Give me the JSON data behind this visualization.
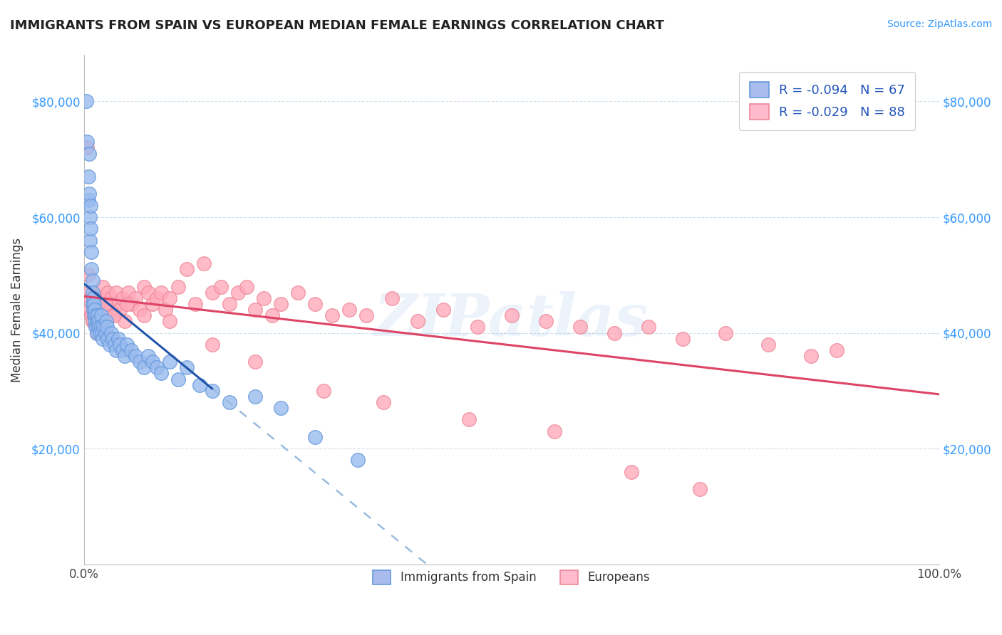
{
  "title": "IMMIGRANTS FROM SPAIN VS EUROPEAN MEDIAN FEMALE EARNINGS CORRELATION CHART",
  "source_text": "Source: ZipAtlas.com",
  "ylabel": "Median Female Earnings",
  "y_tick_values": [
    20000,
    40000,
    60000,
    80000
  ],
  "xlim": [
    0,
    1
  ],
  "ylim": [
    0,
    88000
  ],
  "legend_entry1": "R = -0.094   N = 67",
  "legend_entry2": "R = -0.029   N = 88",
  "legend_label1": "Immigrants from Spain",
  "legend_label2": "Europeans",
  "series1_color": "#6699dd",
  "series1_fill": "#99bbee",
  "series2_color": "#ee8899",
  "series2_fill": "#ffaabb",
  "trendline1_solid_color": "#2255aa",
  "trendline1_dash_color": "#99bbdd",
  "trendline2_color": "#dd4466",
  "watermark_text": "ZIPatlas",
  "title_color": "#222222",
  "title_fontsize": 13,
  "series1_x": [
    0.003,
    0.004,
    0.005,
    0.005,
    0.006,
    0.006,
    0.007,
    0.007,
    0.008,
    0.008,
    0.009,
    0.009,
    0.01,
    0.01,
    0.01,
    0.011,
    0.011,
    0.012,
    0.012,
    0.013,
    0.013,
    0.014,
    0.014,
    0.015,
    0.015,
    0.016,
    0.016,
    0.017,
    0.018,
    0.019,
    0.02,
    0.02,
    0.021,
    0.022,
    0.023,
    0.025,
    0.026,
    0.027,
    0.028,
    0.03,
    0.032,
    0.034,
    0.036,
    0.038,
    0.04,
    0.042,
    0.045,
    0.048,
    0.05,
    0.055,
    0.06,
    0.065,
    0.07,
    0.075,
    0.08,
    0.085,
    0.09,
    0.1,
    0.11,
    0.12,
    0.135,
    0.15,
    0.17,
    0.2,
    0.23,
    0.27,
    0.32
  ],
  "series1_y": [
    80000,
    73000,
    67000,
    63000,
    71000,
    64000,
    60000,
    56000,
    62000,
    58000,
    54000,
    51000,
    49000,
    47000,
    45000,
    46000,
    44000,
    45000,
    43000,
    44000,
    42000,
    43000,
    41000,
    42000,
    40000,
    41000,
    43000,
    42000,
    41000,
    40000,
    43000,
    41000,
    40000,
    39000,
    41000,
    40000,
    42000,
    41000,
    39000,
    38000,
    40000,
    39000,
    38000,
    37000,
    39000,
    38000,
    37000,
    36000,
    38000,
    37000,
    36000,
    35000,
    34000,
    36000,
    35000,
    34000,
    33000,
    35000,
    32000,
    34000,
    31000,
    30000,
    28000,
    29000,
    27000,
    22000,
    18000
  ],
  "series2_x": [
    0.004,
    0.005,
    0.006,
    0.007,
    0.008,
    0.009,
    0.01,
    0.01,
    0.011,
    0.012,
    0.013,
    0.014,
    0.015,
    0.016,
    0.017,
    0.018,
    0.019,
    0.02,
    0.022,
    0.024,
    0.026,
    0.028,
    0.03,
    0.032,
    0.035,
    0.038,
    0.04,
    0.042,
    0.045,
    0.048,
    0.052,
    0.056,
    0.06,
    0.065,
    0.07,
    0.075,
    0.08,
    0.085,
    0.09,
    0.095,
    0.1,
    0.11,
    0.12,
    0.13,
    0.14,
    0.15,
    0.16,
    0.17,
    0.18,
    0.19,
    0.2,
    0.21,
    0.22,
    0.23,
    0.25,
    0.27,
    0.29,
    0.31,
    0.33,
    0.36,
    0.39,
    0.42,
    0.46,
    0.5,
    0.54,
    0.58,
    0.62,
    0.66,
    0.7,
    0.75,
    0.8,
    0.85,
    0.88,
    0.01,
    0.015,
    0.025,
    0.035,
    0.05,
    0.07,
    0.1,
    0.15,
    0.2,
    0.28,
    0.35,
    0.45,
    0.55,
    0.64,
    0.72
  ],
  "series2_y": [
    72000,
    50000,
    47000,
    44000,
    46000,
    43000,
    45000,
    42000,
    44000,
    43000,
    46000,
    44000,
    43000,
    45000,
    44000,
    43000,
    42000,
    44000,
    48000,
    46000,
    45000,
    47000,
    44000,
    46000,
    43000,
    47000,
    45000,
    44000,
    46000,
    42000,
    47000,
    45000,
    46000,
    44000,
    48000,
    47000,
    45000,
    46000,
    47000,
    44000,
    46000,
    48000,
    51000,
    45000,
    52000,
    47000,
    48000,
    45000,
    47000,
    48000,
    44000,
    46000,
    43000,
    45000,
    47000,
    45000,
    43000,
    44000,
    43000,
    46000,
    42000,
    44000,
    41000,
    43000,
    42000,
    41000,
    40000,
    41000,
    39000,
    40000,
    38000,
    36000,
    37000,
    42000,
    40000,
    45000,
    43000,
    45000,
    43000,
    42000,
    38000,
    35000,
    30000,
    28000,
    25000,
    23000,
    16000,
    13000
  ]
}
